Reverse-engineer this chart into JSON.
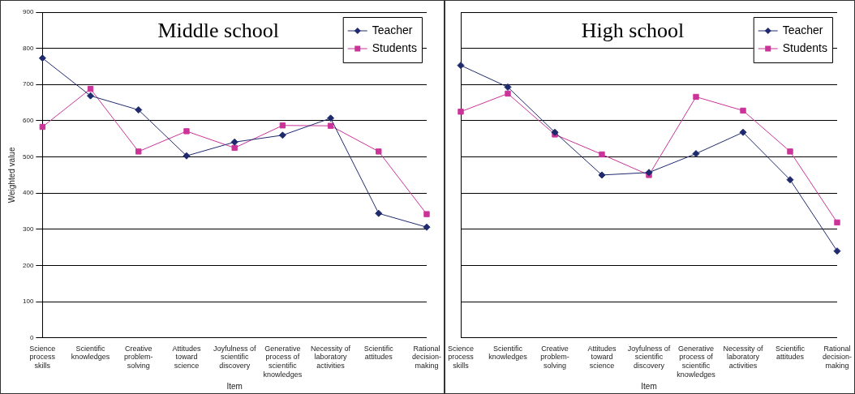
{
  "chart_data": [
    {
      "type": "line",
      "title": "Middle school",
      "xlabel": "Item",
      "ylabel": "Weighted value",
      "categories": [
        "Science process skills",
        "Scientific knowledges",
        "Creative problem-solving",
        "Attitudes toward science",
        "Joyfulness of scientific discovery",
        "Generative process of scientific knowledges",
        "Necessity of laboratory activities",
        "Scientific attitudes",
        "Rational decision-making"
      ],
      "series": [
        {
          "name": "Teacher",
          "color": "#1f2a6e",
          "marker": "diamond",
          "values": [
            773,
            669,
            630,
            503,
            541,
            560,
            607,
            344,
            306
          ]
        },
        {
          "name": "Students",
          "color": "#cc3399",
          "marker": "square",
          "values": [
            583,
            688,
            515,
            571,
            525,
            587,
            586,
            515,
            342
          ]
        }
      ],
      "ylim": [
        0,
        900
      ],
      "yticks": [
        0,
        100,
        200,
        300,
        400,
        500,
        600,
        700,
        800,
        900
      ],
      "grid": "y",
      "legend": "top right"
    },
    {
      "type": "line",
      "title": "High school",
      "xlabel": "Item",
      "categories": [
        "Science process skills",
        "Scientific knowledges",
        "Creative problem-solving",
        "Attitudes toward science",
        "Joyfulness of scientific discovery",
        "Generative process of scientific knowledges",
        "Necessity of laboratory activities",
        "Scientific attitudes",
        "Rational decision-making"
      ],
      "series": [
        {
          "name": "Teacher",
          "color": "#1f2a6e",
          "marker": "diamond",
          "values": [
            753,
            693,
            568,
            450,
            457,
            509,
            568,
            437,
            240
          ]
        },
        {
          "name": "Students",
          "color": "#cc3399",
          "marker": "square",
          "values": [
            625,
            675,
            562,
            507,
            450,
            666,
            628,
            515,
            319
          ]
        }
      ],
      "ylim": [
        0,
        900
      ],
      "yticks": [
        0,
        100,
        200,
        300,
        400,
        500,
        600,
        700,
        800,
        900
      ],
      "grid": "y",
      "legend": "top right",
      "tick_labels": "x"
    }
  ]
}
